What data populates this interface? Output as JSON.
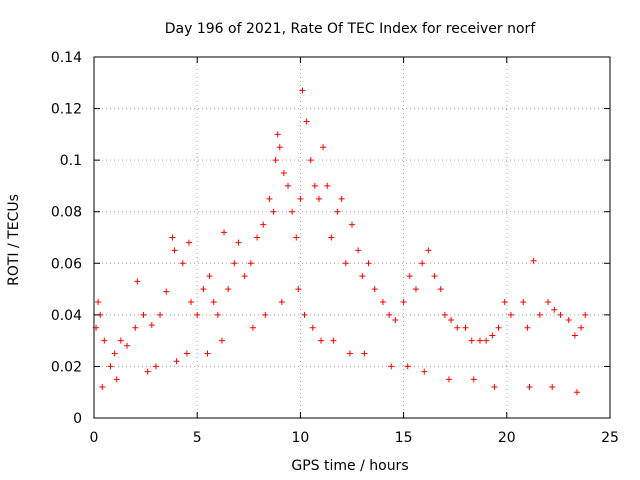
{
  "chart_data": {
    "type": "scatter",
    "title": "Day 196 of 2021, Rate Of TEC Index for receiver norf",
    "xlabel": "GPS time / hours",
    "ylabel": "ROTI / TECUs",
    "xlim": [
      0,
      25
    ],
    "ylim": [
      0,
      0.14
    ],
    "xticks": [
      0,
      5,
      10,
      15,
      20,
      25
    ],
    "yticks": [
      0,
      0.02,
      0.04,
      0.06,
      0.08,
      0.1,
      0.12,
      0.14
    ],
    "xtick_labels": [
      "0",
      "5",
      "10",
      "15",
      "20",
      "25"
    ],
    "ytick_labels": [
      "0",
      "0.02",
      "0.04",
      "0.06",
      "0.08",
      "0.1",
      "0.12",
      "0.14"
    ],
    "grid": true,
    "marker": "plus",
    "color": "#ff0000",
    "series": [
      {
        "x": [
          0.1,
          0.2,
          0.3,
          0.5,
          0.8,
          1.0,
          1.3,
          1.6,
          2.0,
          2.1,
          2.4,
          2.8,
          3.2,
          3.5,
          3.8,
          3.9,
          4.3,
          4.6,
          4.7,
          5.0,
          5.3,
          5.6,
          5.8,
          6.0,
          6.3,
          6.5,
          6.8,
          7.0,
          7.3,
          7.6,
          7.9,
          8.2,
          8.5,
          8.7,
          8.8,
          8.9,
          9.0,
          9.2,
          9.4,
          9.6,
          9.8,
          10.0,
          10.1,
          10.3,
          10.5,
          10.7,
          10.9,
          11.1,
          11.3,
          11.5,
          11.8,
          12.0,
          12.2,
          12.5,
          12.8,
          13.0,
          13.3,
          13.6,
          14.0,
          14.3,
          14.6,
          15.0,
          15.3,
          15.6,
          15.9,
          16.2,
          16.5,
          16.8,
          17.0,
          17.3,
          17.6,
          18.0,
          18.3,
          18.7,
          19.0,
          19.3,
          19.6,
          19.9,
          20.2,
          20.8,
          21.0,
          21.3,
          21.6,
          22.0,
          22.3,
          22.6,
          23.0,
          23.3,
          23.6,
          23.8,
          0.4,
          1.1,
          2.6,
          3.0,
          4.0,
          4.5,
          5.5,
          6.2,
          7.7,
          8.3,
          9.1,
          9.9,
          10.2,
          10.6,
          11.0,
          11.6,
          12.4,
          13.1,
          14.4,
          15.2,
          16.0,
          17.2,
          18.4,
          19.4,
          21.1,
          22.2,
          23.4
        ],
        "y": [
          0.035,
          0.045,
          0.04,
          0.03,
          0.02,
          0.025,
          0.03,
          0.028,
          0.035,
          0.053,
          0.04,
          0.036,
          0.04,
          0.049,
          0.07,
          0.065,
          0.06,
          0.068,
          0.045,
          0.04,
          0.05,
          0.055,
          0.045,
          0.04,
          0.072,
          0.05,
          0.06,
          0.068,
          0.055,
          0.06,
          0.07,
          0.075,
          0.085,
          0.08,
          0.1,
          0.11,
          0.105,
          0.095,
          0.09,
          0.08,
          0.07,
          0.085,
          0.127,
          0.115,
          0.1,
          0.09,
          0.085,
          0.105,
          0.09,
          0.07,
          0.08,
          0.085,
          0.06,
          0.075,
          0.065,
          0.055,
          0.06,
          0.05,
          0.045,
          0.04,
          0.038,
          0.045,
          0.055,
          0.05,
          0.06,
          0.065,
          0.055,
          0.05,
          0.04,
          0.038,
          0.035,
          0.035,
          0.03,
          0.03,
          0.03,
          0.032,
          0.035,
          0.045,
          0.04,
          0.045,
          0.035,
          0.061,
          0.04,
          0.045,
          0.042,
          0.04,
          0.038,
          0.032,
          0.035,
          0.04,
          0.012,
          0.015,
          0.018,
          0.02,
          0.022,
          0.025,
          0.025,
          0.03,
          0.035,
          0.04,
          0.045,
          0.05,
          0.04,
          0.035,
          0.03,
          0.03,
          0.025,
          0.025,
          0.02,
          0.02,
          0.018,
          0.015,
          0.015,
          0.012,
          0.012,
          0.012,
          0.01
        ]
      }
    ]
  }
}
